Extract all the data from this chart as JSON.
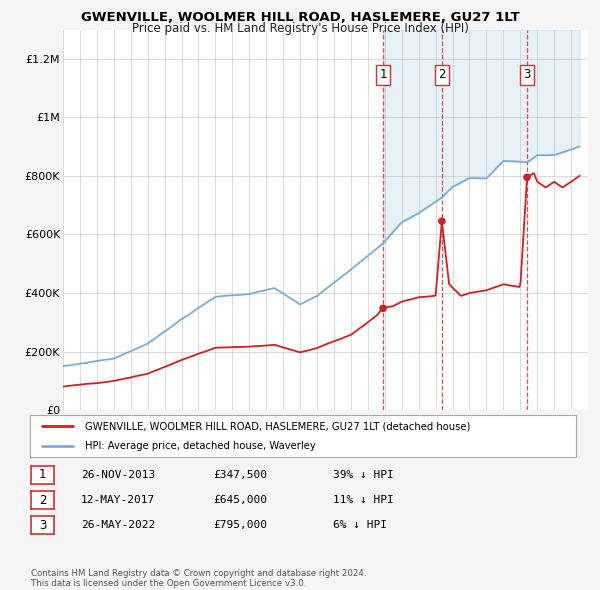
{
  "title": "GWENVILLE, WOOLMER HILL ROAD, HASLEMERE, GU27 1LT",
  "subtitle": "Price paid vs. HM Land Registry's House Price Index (HPI)",
  "ylabel_ticks": [
    "£0",
    "£200K",
    "£400K",
    "£600K",
    "£800K",
    "£1M",
    "£1.2M"
  ],
  "ytick_values": [
    0,
    200000,
    400000,
    600000,
    800000,
    1000000,
    1200000
  ],
  "ylim": [
    0,
    1300000
  ],
  "xlim_start": 1995.0,
  "xlim_end": 2026.0,
  "legend_line1": "GWENVILLE, WOOLMER HILL ROAD, HASLEMERE, GU27 1LT (detached house)",
  "legend_line2": "HPI: Average price, detached house, Waverley",
  "sale1_label": "1",
  "sale1_date": "26-NOV-2013",
  "sale1_price": "£347,500",
  "sale1_hpi": "39% ↓ HPI",
  "sale1_x": 2013.9,
  "sale1_y": 347500,
  "sale2_label": "2",
  "sale2_date": "12-MAY-2017",
  "sale2_price": "£645,000",
  "sale2_hpi": "11% ↓ HPI",
  "sale2_x": 2017.37,
  "sale2_y": 645000,
  "sale3_label": "3",
  "sale3_date": "26-MAY-2022",
  "sale3_price": "£795,000",
  "sale3_hpi": "6% ↓ HPI",
  "sale3_x": 2022.4,
  "sale3_y": 795000,
  "hpi_color": "#7aadd4",
  "price_color": "#cc2222",
  "vline_color": "#cc3333",
  "copyright_text": "Contains HM Land Registry data © Crown copyright and database right 2024.\nThis data is licensed under the Open Government Licence v3.0.",
  "background_color": "#f5f5f5",
  "plot_bg_color": "#ffffff",
  "grid_color": "#cccccc"
}
